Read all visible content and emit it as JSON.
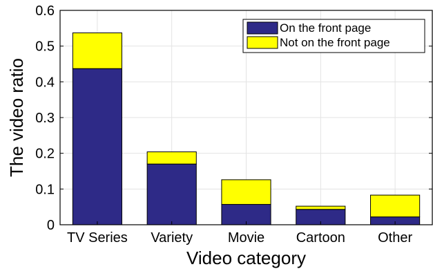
{
  "chart_data": {
    "type": "bar",
    "stacked": true,
    "categories": [
      "TV Series",
      "Variety",
      "Movie",
      "Cartoon",
      "Other"
    ],
    "series": [
      {
        "name": "On the front page",
        "values": [
          0.437,
          0.17,
          0.057,
          0.043,
          0.022
        ],
        "color": "#2e2a87"
      },
      {
        "name": "Not on the front page",
        "values": [
          0.1,
          0.034,
          0.069,
          0.009,
          0.061
        ],
        "color": "#ffff00"
      }
    ],
    "xlabel": "Video category",
    "ylabel": "The video ratio",
    "ylim": [
      0,
      0.6
    ],
    "yticks": [
      "0",
      "0.1",
      "0.2",
      "0.3",
      "0.4",
      "0.5",
      "0.6"
    ],
    "grid": true,
    "legend_position": "top-right"
  }
}
